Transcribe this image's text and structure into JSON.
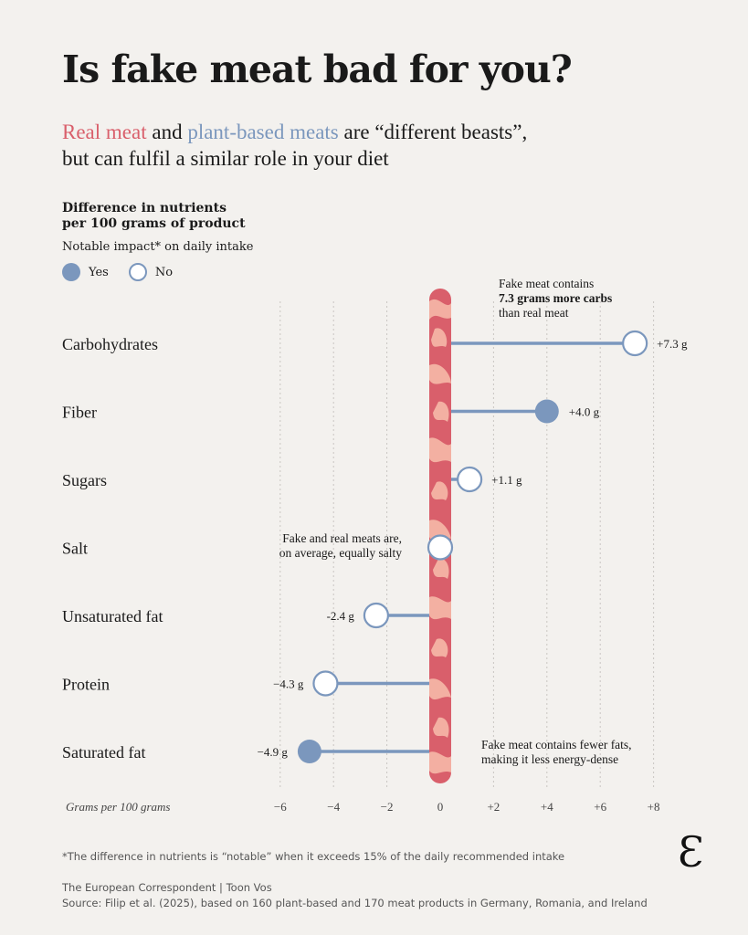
{
  "header": {
    "title": "Is fake meat bad for you?",
    "subtitle_real": "Real meat",
    "subtitle_and": " and ",
    "subtitle_plant": "plant-based meats",
    "subtitle_rest1": " are “different beasts”,",
    "subtitle_rest2": "but can fulfil a similar role in your diet"
  },
  "chart_heading": {
    "line1": "Difference in nutrients",
    "line2": "per 100 grams of product"
  },
  "legend": {
    "title": "Notable impact* on daily intake",
    "yes": "Yes",
    "no": "No"
  },
  "colors": {
    "accent_blue": "#7b97bd",
    "meat_red": "#d95f6b",
    "meat_light": "#f6b9a9",
    "gridline": "#c9c6c2"
  },
  "chart_data": {
    "type": "lollipop",
    "x_axis_label": "Grams per 100 grams",
    "xlim": [
      -6,
      8
    ],
    "ticks": [
      -6,
      -4,
      -2,
      0,
      2,
      4,
      6,
      8
    ],
    "tick_labels": [
      "−6",
      "−4",
      "−2",
      "0",
      "+2",
      "+4",
      "+6",
      "+8"
    ],
    "grid": true,
    "categories": [
      "Carbohydrates",
      "Fiber",
      "Sugars",
      "Salt",
      "Unsaturated fat",
      "Protein",
      "Saturated fat"
    ],
    "values": [
      7.3,
      4.0,
      1.1,
      0,
      -2.4,
      -4.3,
      -4.9
    ],
    "value_labels": [
      "+7.3 g",
      "+4.0 g",
      "+1.1 g",
      "",
      "-2.4 g",
      "−4.3 g",
      "−4.9 g"
    ],
    "notable": [
      false,
      true,
      false,
      false,
      false,
      false,
      true
    ],
    "annotations": [
      {
        "lines": [
          "Fake meat contains",
          "7.3 grams more carbs",
          "than real meat"
        ],
        "bold_line": 1
      },
      {
        "lines": [
          "Fake and real meats are,",
          "on average, equally salty"
        ]
      },
      {
        "lines": [
          "Fake meat contains fewer fats,",
          "making it less energy-dense"
        ]
      }
    ]
  },
  "footer": {
    "footnote": "*The difference in nutrients is “notable” when it exceeds 15% of the daily recommended intake",
    "credit": "The European Correspondent | Toon Vos",
    "source": "Source: Filip et al. (2025), based on 160 plant-based and 170 meat products in Germany, Romania, and Ireland",
    "logo": "Ɛ"
  }
}
